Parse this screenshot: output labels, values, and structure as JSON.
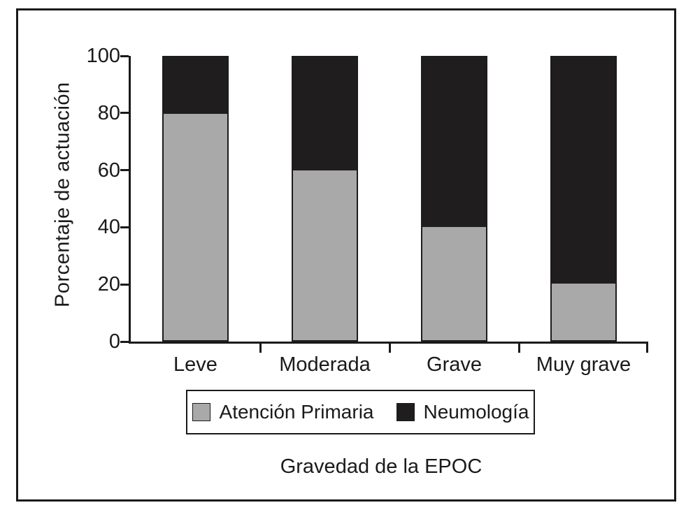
{
  "chart_data": {
    "type": "bar",
    "stacked": true,
    "categories": [
      "Leve",
      "Moderada",
      "Grave",
      "Muy grave"
    ],
    "series": [
      {
        "name": "Atención Primaria",
        "color": "#a9a9a9",
        "values": [
          80,
          60,
          40,
          20
        ]
      },
      {
        "name": "Neumología",
        "color": "#201d1e",
        "values": [
          20,
          40,
          60,
          80
        ]
      }
    ],
    "title": "",
    "xlabel": "Gravedad de la EPOC",
    "ylabel": "Porcentaje de actuación",
    "ylim": [
      0,
      100
    ],
    "yticks": [
      0,
      20,
      40,
      60,
      80,
      100
    ],
    "legend_position": "bottom",
    "grid": false,
    "frame_color": "#1a1a1a",
    "bar_outline_color": "#1c1c1c",
    "text_color": "#1a1a1a"
  }
}
